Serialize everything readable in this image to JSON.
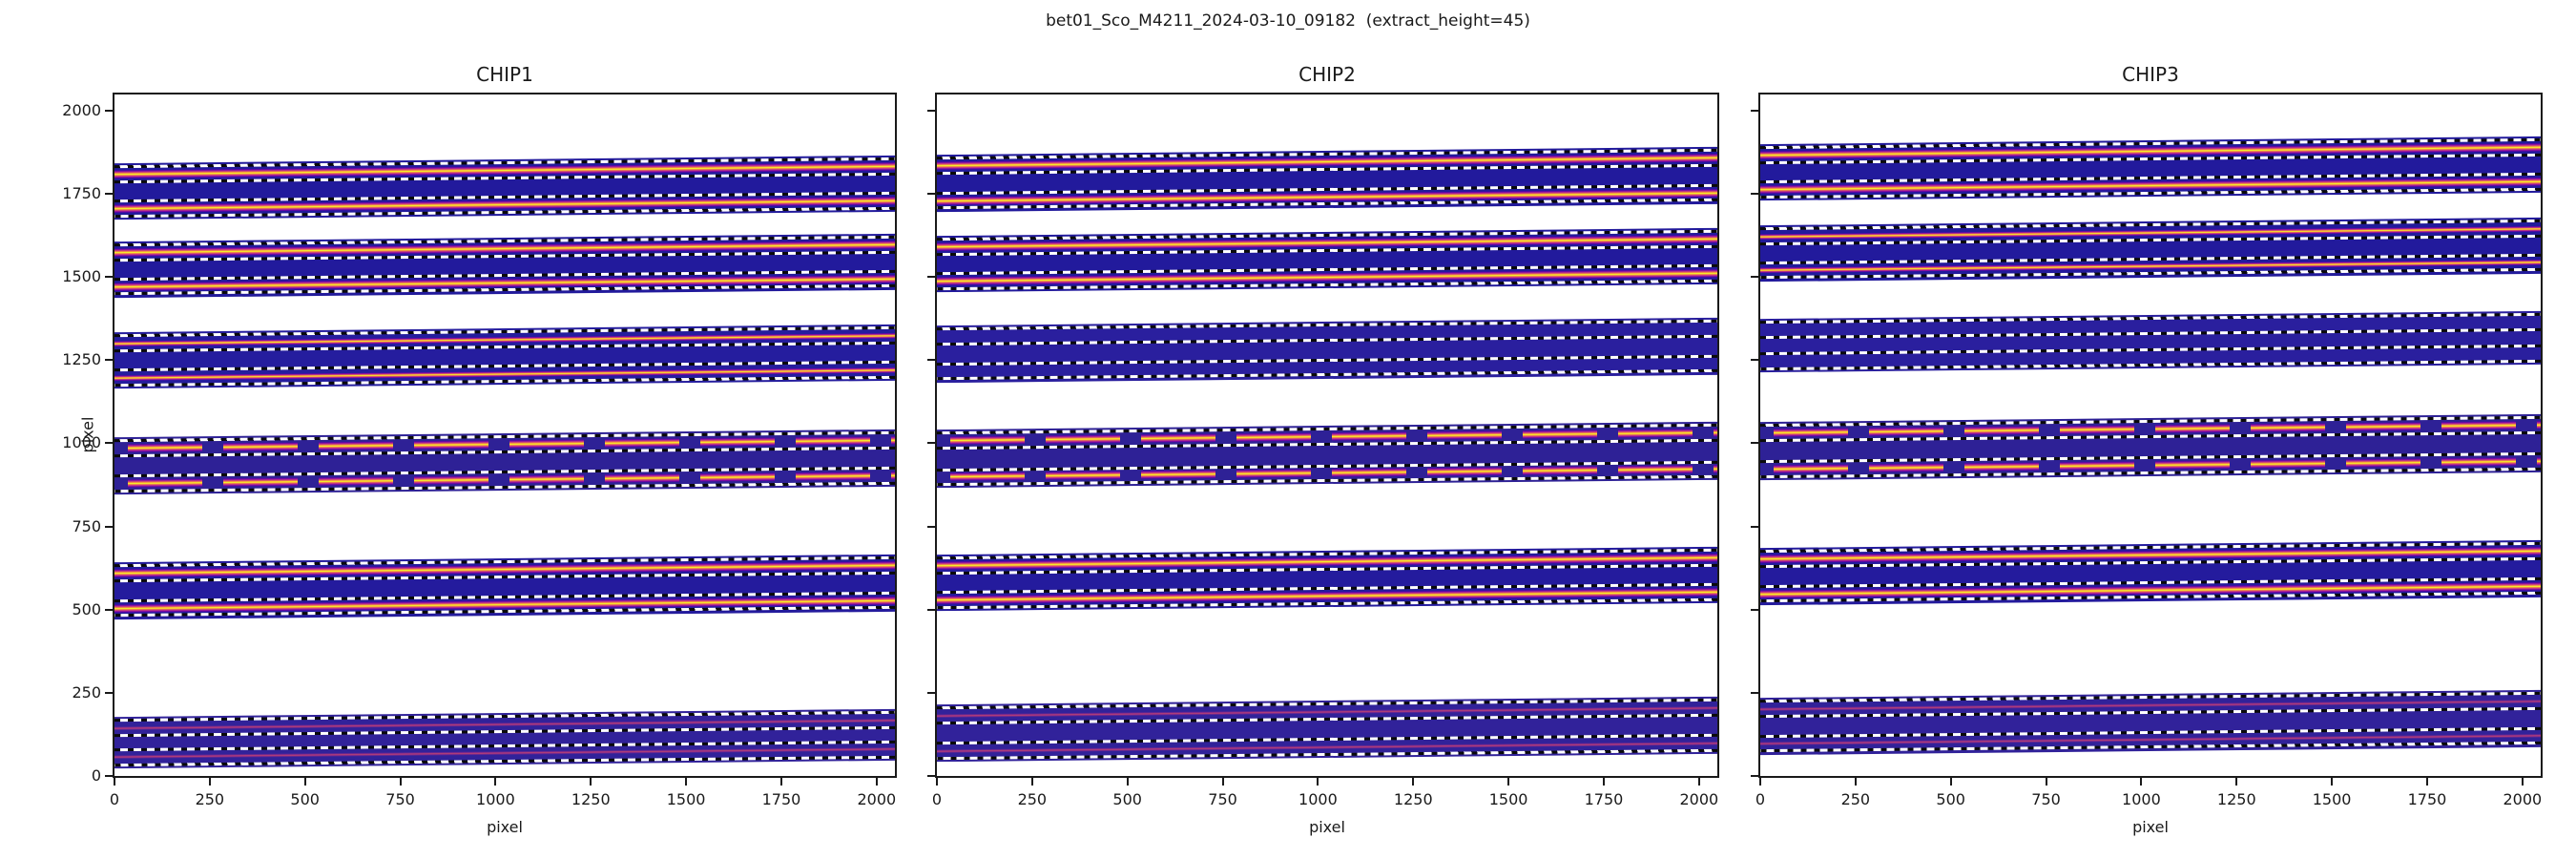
{
  "chart_data": {
    "type": "heatmap",
    "suptitle": "bet01_Sco_M4211_2024-03-10_09182  (extract_height=45)",
    "extract_height": 45,
    "extraction_half_height": 22.5,
    "band_margin": 33,
    "trace_rise_data_units": 24,
    "xlabel": "pixel",
    "ylabel": "pixel",
    "xlim": [
      0,
      2048
    ],
    "ylim": [
      0,
      2048
    ],
    "x_ticks": [
      0,
      250,
      500,
      750,
      1000,
      1250,
      1500,
      1750,
      2000
    ],
    "y_ticks": [
      0,
      250,
      500,
      750,
      1000,
      1250,
      1500,
      1750,
      2000
    ],
    "grid": false,
    "legend": "none",
    "panels": [
      {
        "title": "CHIP1",
        "xlabel": "pixel",
        "ylabel": "pixel",
        "show_y_tick_labels": true,
        "orders": [
          {
            "traces": [
              1808,
              1704
            ],
            "style": "bright",
            "bg": "#221a9c"
          },
          {
            "traces": [
              1572,
              1470
            ],
            "style": "bright",
            "bg": "#221a9c"
          },
          {
            "traces": [
              1300,
              1196
            ],
            "style": "medium",
            "bg": "#251d9e"
          },
          {
            "traces": [
              985,
              879
            ],
            "style": "broken",
            "bg": "#2e2196"
          },
          {
            "traces": [
              610,
              505
            ],
            "style": "bright",
            "bg": "#241b9d"
          },
          {
            "traces": [
              145,
              57
            ],
            "style": "faint",
            "bg": "#31229a"
          }
        ]
      },
      {
        "title": "CHIP2",
        "xlabel": "pixel",
        "ylabel": "",
        "show_y_tick_labels": false,
        "orders": [
          {
            "traces": [
              1835,
              1730
            ],
            "style": "bright",
            "bg": "#221a9c"
          },
          {
            "traces": [
              1591,
              1488
            ],
            "style": "bright",
            "bg": "#221a9c"
          },
          {
            "traces": [
              1321,
              1216
            ],
            "style": "none",
            "bg": "#2a1f9e"
          },
          {
            "traces": [
              1008,
              898
            ],
            "style": "broken",
            "bg": "#2e2196"
          },
          {
            "traces": [
              631,
              527
            ],
            "style": "bright",
            "bg": "#241b9d"
          },
          {
            "traces": [
              183,
              76
            ],
            "style": "faint",
            "bg": "#31229a"
          }
        ]
      },
      {
        "title": "CHIP3",
        "xlabel": "pixel",
        "ylabel": "",
        "show_y_tick_labels": false,
        "orders": [
          {
            "traces": [
              1865,
              1761
            ],
            "style": "bright",
            "bg": "#221a9c"
          },
          {
            "traces": [
              1622,
              1520
            ],
            "style": "medium",
            "bg": "#221a9c"
          },
          {
            "traces": [
              1339,
              1244
            ],
            "style": "none",
            "bg": "#2a1f9e"
          },
          {
            "traces": [
              1032,
              924
            ],
            "style": "broken",
            "bg": "#2e2196"
          },
          {
            "traces": [
              653,
              548
            ],
            "style": "bright",
            "bg": "#241b9d"
          },
          {
            "traces": [
              201,
              96
            ],
            "style": "faint",
            "bg": "#31229a"
          }
        ]
      }
    ],
    "colors": {
      "background": "#ffffff",
      "spine": "#1a1a1a",
      "band_navy": "#221a9c",
      "trace_core_yellow": "#f4ef2b",
      "trace_orange": "#fca636",
      "trace_magenta": "#e16462",
      "trace_purple": "#6a00a8",
      "edge_dash_white": "#ffffff",
      "edge_dash_black": "#0a0a0a"
    }
  }
}
